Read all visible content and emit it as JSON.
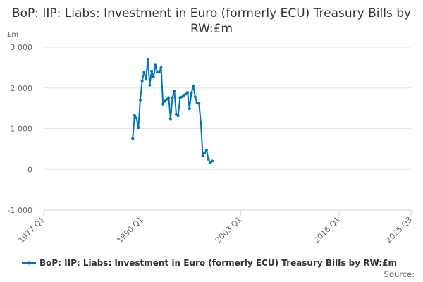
{
  "chart_data": {
    "type": "line",
    "title": "BoP: IIP: Liabs: Investment in Euro (formerly ECU) Treasury Bills by RW:£m",
    "ylabel": "£m",
    "xlabel": "",
    "ylim": [
      -1000,
      3000
    ],
    "yticks": [
      3000,
      2000,
      1000,
      0,
      -1000
    ],
    "ytick_labels": [
      "3 000",
      "2 000",
      "1 000",
      "0",
      "-1 000"
    ],
    "xticks": [
      "1977 Q1",
      "1990 Q1",
      "2003 Q1",
      "2016 Q1",
      "2025 Q3"
    ],
    "xlim": [
      "1977 Q1",
      "2025 Q3"
    ],
    "grid": true,
    "legend_position": "bottom",
    "series": [
      {
        "name": "BoP: IIP: Liabs: Investment in Euro (formerly ECU) Treasury Bills by RW:£m",
        "color": "#0075b4",
        "start": "1988 Q4",
        "frequency": "quarterly",
        "values": [
          758,
          1323,
          1261,
          1023,
          1705,
          2168,
          2388,
          2214,
          2705,
          2069,
          2415,
          2272,
          2561,
          2388,
          2388,
          2502,
          1607,
          1677,
          1722,
          1763,
          1243,
          1763,
          1925,
          1358,
          1318,
          1763,
          1781,
          1821,
          1850,
          1890,
          1491,
          1878,
          2051,
          1781,
          1635,
          1625,
          1144,
          335,
          404,
          473,
          248,
          161,
          203
        ]
      }
    ]
  },
  "title": "BoP: IIP: Liabs: Investment in Euro (formerly ECU) Treasury Bills by RW:£m",
  "unit": "£m",
  "legend_label": "BoP: IIP: Liabs: Investment in Euro (formerly ECU) Treasury Bills by RW:£m",
  "source": "Source:"
}
